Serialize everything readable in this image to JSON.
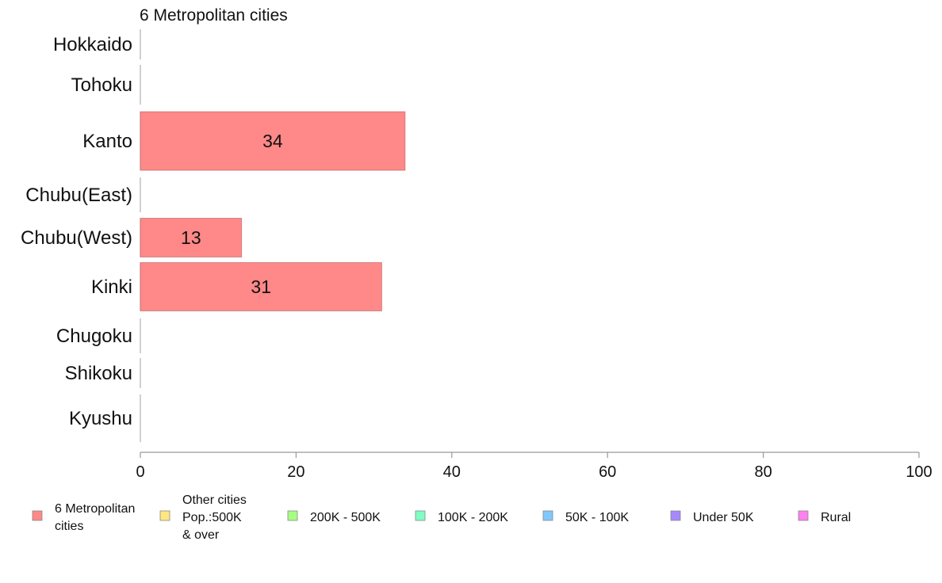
{
  "chart_data": {
    "type": "bar",
    "orientation": "horizontal",
    "title": "6 Metropolitan cities",
    "categories": [
      "Hokkaido",
      "Tohoku",
      "Kanto",
      "Chubu(East)",
      "Chubu(West)",
      "Kinki",
      "Chugoku",
      "Shikoku",
      "Kyushu"
    ],
    "series": [
      {
        "name": "6 Metropolitan cities",
        "color": "#ff8888",
        "values": [
          0,
          0,
          34,
          0,
          13,
          31,
          0,
          0,
          0
        ],
        "labels": [
          "",
          "",
          "34",
          "",
          "13",
          "31",
          "",
          "",
          ""
        ]
      }
    ],
    "xlim": [
      0,
      100
    ],
    "xticks": [
      "0",
      "20",
      "40",
      "60",
      "80",
      "100"
    ],
    "grid": false,
    "legend_position": "bottom",
    "legend": [
      {
        "lines": [
          "6 Metropolitan",
          "cities"
        ],
        "color": "#ff8888"
      },
      {
        "lines": [
          "Other cities",
          "Pop.:500K",
          " & over"
        ],
        "color": "#ffe680"
      },
      {
        "lines": [
          "200K - 500K"
        ],
        "color": "#a6ff80"
      },
      {
        "lines": [
          "100K - 200K"
        ],
        "color": "#80ffc4"
      },
      {
        "lines": [
          "50K - 100K"
        ],
        "color": "#80c8ff"
      },
      {
        "lines": [
          "Under 50K"
        ],
        "color": "#a688ff"
      },
      {
        "lines": [
          "Rural"
        ],
        "color": "#ff80ee"
      }
    ]
  }
}
